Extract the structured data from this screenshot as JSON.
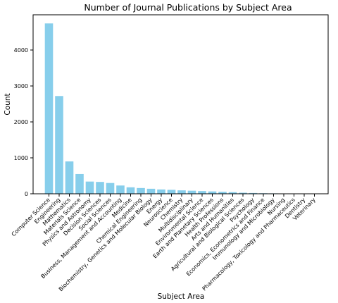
{
  "chart_data": {
    "type": "bar",
    "title": "Number of Journal Publications by Subject Area",
    "xlabel": "Subject Area",
    "ylabel": "Count",
    "ylim": [
      0,
      4980
    ],
    "yticks": [
      0,
      1000,
      2000,
      3000,
      4000
    ],
    "grid": false,
    "color": "#87CEEB",
    "categories": [
      "Computer Science",
      "Engineering",
      "Mathematics",
      "Materials Science",
      "Physics and Astronomy",
      "Decision Sciences",
      "Social Sciences",
      "Business, Management and Accounting",
      "Medicine",
      "Chemical Engineering",
      "Biochemistry, Genetics and Molecular Biology",
      "Energy",
      "Neuroscience",
      "Chemistry",
      "Multidisciplinary",
      "Environmental Science",
      "Earth and Planetary Sciences",
      "Health Professions",
      "Arts and Humanities",
      "Agricultural and Biological Sciences",
      "Psychology",
      "Economics, Econometrics and Finance",
      "Immunology and Microbiology",
      "Nursing",
      "Pharmacology, Toxicology and Pharmaceutics",
      "Dentistry",
      "Veterinary"
    ],
    "values": [
      4740,
      2720,
      900,
      550,
      340,
      330,
      300,
      230,
      180,
      160,
      140,
      120,
      110,
      95,
      85,
      75,
      65,
      55,
      45,
      30,
      22,
      15,
      12,
      8,
      6,
      4,
      2
    ]
  }
}
